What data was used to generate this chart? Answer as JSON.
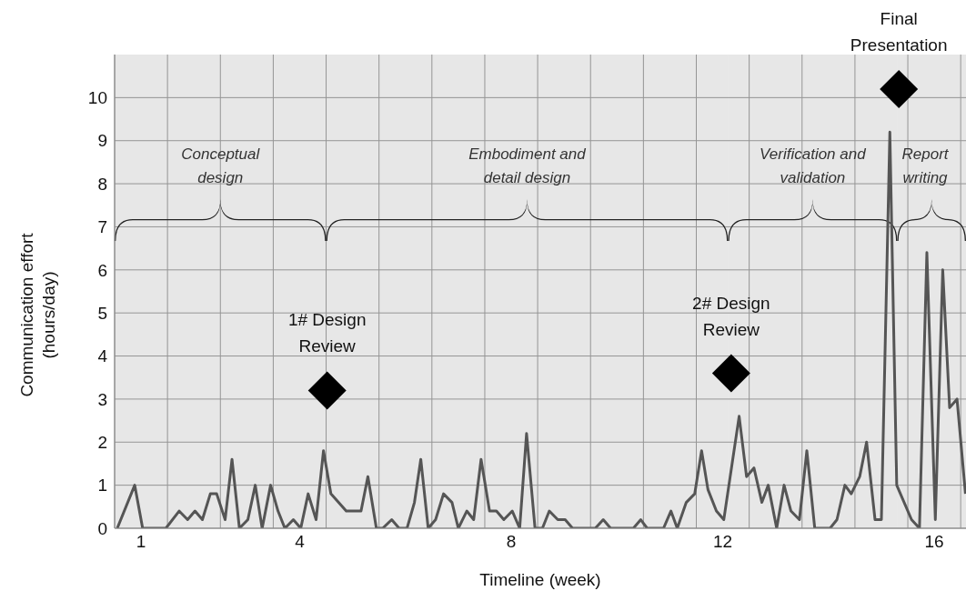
{
  "chart_data": {
    "type": "line",
    "xlabel": "Timeline (week)",
    "ylabel": "Communication  effort (hours/day)",
    "xlim": [
      0.5,
      16.6
    ],
    "xticks": [
      {
        "value": 0.5,
        "label": null
      },
      1,
      {
        "value": 1.5,
        "label": null
      },
      {
        "value": 2.5,
        "label": null
      },
      {
        "value": 3.5,
        "label": null
      },
      4,
      {
        "value": 4.5,
        "label": null
      },
      {
        "value": 5.5,
        "label": null
      },
      {
        "value": 6.5,
        "label": null
      },
      {
        "value": 7.5,
        "label": null
      },
      8,
      {
        "value": 8.5,
        "label": null
      },
      {
        "value": 9.5,
        "label": null
      },
      {
        "value": 10.5,
        "label": null
      },
      {
        "value": 11.5,
        "label": null
      },
      12,
      {
        "value": 12.5,
        "label": null
      },
      {
        "value": 13.5,
        "label": null
      },
      {
        "value": 14.5,
        "label": null
      },
      {
        "value": 15.5,
        "label": null
      },
      16,
      {
        "value": 16.5,
        "label": null
      }
    ],
    "ylim": [
      0,
      11
    ],
    "yticks": [
      0,
      1,
      2,
      3,
      4,
      5,
      6,
      7,
      8,
      9,
      10
    ],
    "grid": true,
    "legend": false,
    "series": [
      {
        "color": "#555555",
        "marker": "none",
        "line_style": "solid",
        "x": [
          0.55,
          0.88,
          1.03,
          1.47,
          1.72,
          1.88,
          2.02,
          2.16,
          2.31,
          2.43,
          2.59,
          2.72,
          2.86,
          3.02,
          3.16,
          3.29,
          3.45,
          3.59,
          3.72,
          3.88,
          4.02,
          4.16,
          4.31,
          4.45,
          4.59,
          4.88,
          5.16,
          5.29,
          5.45,
          5.57,
          5.74,
          5.88,
          6.03,
          6.17,
          6.29,
          6.43,
          6.57,
          6.72,
          6.88,
          7.0,
          7.16,
          7.29,
          7.43,
          7.59,
          7.72,
          7.86,
          8.02,
          8.16,
          8.29,
          8.45,
          8.59,
          8.72,
          8.88,
          9.02,
          9.16,
          9.59,
          9.74,
          9.88,
          10.31,
          10.45,
          10.57,
          10.88,
          11.02,
          11.14,
          11.31,
          11.47,
          11.6,
          11.72,
          11.88,
          12.02,
          12.31,
          12.45,
          12.59,
          12.74,
          12.86,
          13.02,
          13.16,
          13.29,
          13.45,
          13.59,
          13.74,
          14.03,
          14.16,
          14.31,
          14.43,
          14.59,
          14.72,
          14.88,
          15.0,
          15.16,
          15.29,
          15.57,
          15.72,
          15.86,
          16.02,
          16.16,
          16.29,
          16.43,
          16.59
        ],
        "values": [
          0,
          1,
          0,
          0,
          0.4,
          0.2,
          0.4,
          0.2,
          0.8,
          0.8,
          0.2,
          1.6,
          0,
          0.2,
          1,
          0,
          1,
          0.4,
          0,
          0.2,
          0,
          0.8,
          0.2,
          1.8,
          0.8,
          0.4,
          0.4,
          1.2,
          0,
          0,
          0.2,
          0,
          0,
          0.6,
          1.6,
          0,
          0.2,
          0.8,
          0.6,
          0,
          0.4,
          0.2,
          1.6,
          0.4,
          0.4,
          0.2,
          0.4,
          0,
          2.2,
          0,
          0,
          0.4,
          0.2,
          0.2,
          0,
          0,
          0.2,
          0,
          0,
          0.2,
          0,
          0,
          0.4,
          0,
          0.6,
          0.8,
          1.8,
          0.9,
          0.4,
          0.2,
          2.6,
          1.2,
          1.4,
          0.6,
          1,
          0,
          1,
          0.4,
          0.2,
          1.8,
          0,
          0,
          0.2,
          1,
          0.8,
          1.2,
          2,
          0.2,
          0.2,
          9.2,
          1,
          0.2,
          0,
          6.4,
          0.2,
          6,
          2.8,
          3,
          0.8
        ]
      },
      {
        "type": "scatter",
        "color": "#000000",
        "marker": "diamond",
        "x": [
          4.52,
          12.16,
          15.33
        ],
        "values": [
          3.2,
          3.6,
          10.2
        ]
      }
    ],
    "annotations": [
      {
        "text": "1# Design Review",
        "x": 4.52,
        "y": 3.2
      },
      {
        "text": "2# Design Review",
        "x": 12.16,
        "y": 3.6
      },
      {
        "text": "Final Presentation",
        "x": 15.33,
        "y": 10.2
      }
    ],
    "bands": [
      {
        "axis": "x",
        "from": 0.5,
        "to": 4.5,
        "label": "Conceptual design"
      },
      {
        "axis": "x",
        "from": 4.5,
        "to": 12.1,
        "label": "Embodiment and detail design"
      },
      {
        "axis": "x",
        "from": 12.1,
        "to": 15.3,
        "label": "Verification and validation"
      },
      {
        "axis": "x",
        "from": 15.3,
        "to": 16.6,
        "label": "Report writing"
      }
    ]
  }
}
